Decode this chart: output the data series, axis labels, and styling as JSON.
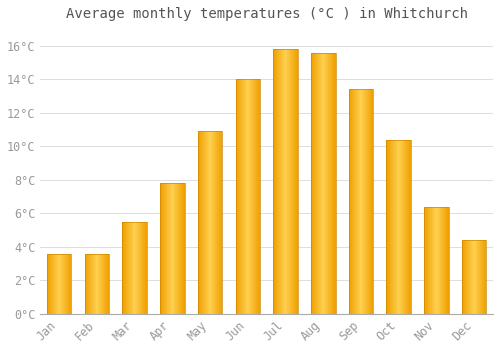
{
  "title": "Average monthly temperatures (°C ) in Whitchurch",
  "months": [
    "Jan",
    "Feb",
    "Mar",
    "Apr",
    "May",
    "Jun",
    "Jul",
    "Aug",
    "Sep",
    "Oct",
    "Nov",
    "Dec"
  ],
  "temperatures": [
    3.6,
    3.6,
    5.5,
    7.8,
    10.9,
    14.0,
    15.8,
    15.6,
    13.4,
    10.4,
    6.4,
    4.4
  ],
  "bar_color_center": "#FFD050",
  "bar_color_edge": "#F0A000",
  "background_color": "#FFFFFF",
  "plot_bg_color": "#FFFFFF",
  "grid_color": "#DDDDDD",
  "ylim": [
    0,
    17
  ],
  "yticks": [
    0,
    2,
    4,
    6,
    8,
    10,
    12,
    14,
    16
  ],
  "title_fontsize": 10,
  "tick_fontsize": 8.5,
  "font_family": "monospace",
  "bar_width": 0.65
}
